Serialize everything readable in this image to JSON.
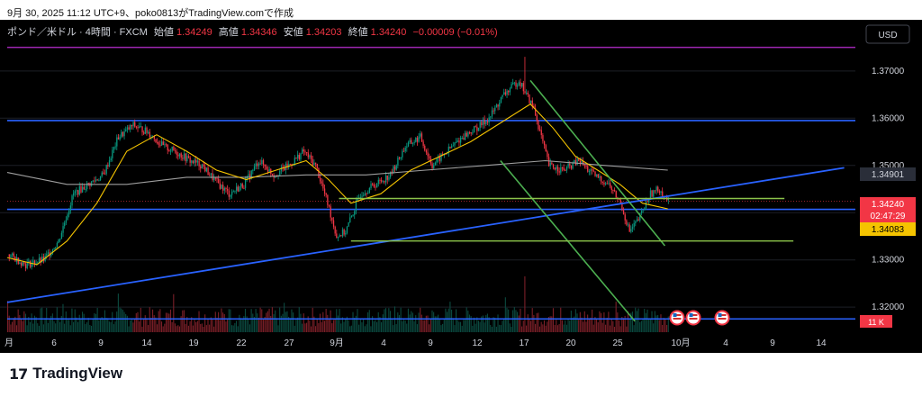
{
  "caption": "9月 30, 2025 11:12 UTC+9、poko0813がTradingView.comで作成",
  "header": {
    "symbol": "ポンド／米ドル · 4時間 · FXCM",
    "open_label": "始値",
    "open": "1.34249",
    "high_label": "高値",
    "high": "1.34346",
    "low_label": "安値",
    "low": "1.34203",
    "close_label": "終値",
    "close": "1.34240",
    "change": "−0.00009 (−0.01%)"
  },
  "currency_button": "USD",
  "price_badges": {
    "ma": "1.34901",
    "last": "1.34240",
    "countdown": "02:47:29",
    "ma_fast": "1.34083",
    "volume": "11 K"
  },
  "logo": {
    "mark": "17",
    "text": "TradingView"
  },
  "colors": {
    "background": "#000000",
    "bull": "#089981",
    "bear": "#f23645",
    "fast_ma": "#f5c400",
    "slow_ma": "#9e9e9e",
    "horizontal_lines": "#2962ff",
    "trendline": "#2962ff",
    "channel": "#4caf50",
    "green_levels": "#8bc34a",
    "top_line": "#9c27b0"
  },
  "icons": [
    "us-flag-event-icon",
    "us-flag-event-icon",
    "us-flag-event-icon"
  ],
  "chart_data": {
    "type": "candlestick",
    "y_axis": {
      "range": [
        1.3145,
        1.3755
      ],
      "ticks": [
        "1.37000",
        "1.36000",
        "1.35000",
        "1.34000",
        "1.33000",
        "1.32000"
      ]
    },
    "x_axis": {
      "ticks": [
        "月",
        "6",
        "9",
        "14",
        "19",
        "22",
        "27",
        "9月",
        "4",
        "9",
        "12",
        "17",
        "20",
        "25",
        "10月",
        "4",
        "9",
        "14"
      ]
    },
    "series": [
      {
        "name": "",
        "type": "candles",
        "close_path": [
          [
            0,
            1.3312
          ],
          [
            12,
            1.329
          ],
          [
            24,
            1.33
          ],
          [
            34,
            1.334
          ],
          [
            44,
            1.344
          ],
          [
            54,
            1.346
          ],
          [
            64,
            1.348
          ],
          [
            74,
            1.356
          ],
          [
            84,
            1.3585
          ],
          [
            94,
            1.357
          ],
          [
            104,
            1.354
          ],
          [
            112,
            1.353
          ],
          [
            122,
            1.351
          ],
          [
            130,
            1.35
          ],
          [
            138,
            1.347
          ],
          [
            148,
            1.344
          ],
          [
            158,
            1.346
          ],
          [
            168,
            1.351
          ],
          [
            178,
            1.348
          ],
          [
            188,
            1.35
          ],
          [
            198,
            1.353
          ],
          [
            206,
            1.35
          ],
          [
            214,
            1.342
          ],
          [
            220,
            1.335
          ],
          [
            226,
            1.336
          ],
          [
            236,
            1.344
          ],
          [
            246,
            1.346
          ],
          [
            256,
            1.348
          ],
          [
            266,
            1.354
          ],
          [
            276,
            1.356
          ],
          [
            284,
            1.35
          ],
          [
            294,
            1.353
          ],
          [
            304,
            1.356
          ],
          [
            314,
            1.358
          ],
          [
            322,
            1.36
          ],
          [
            332,
            1.365
          ],
          [
            342,
            1.368
          ],
          [
            352,
            1.362
          ],
          [
            362,
            1.35
          ],
          [
            372,
            1.349
          ],
          [
            382,
            1.351
          ],
          [
            392,
            1.348
          ],
          [
            402,
            1.346
          ],
          [
            410,
            1.342
          ],
          [
            416,
            1.336
          ],
          [
            422,
            1.3385
          ],
          [
            430,
            1.344
          ],
          [
            436,
            1.345
          ],
          [
            442,
            1.3424
          ]
        ]
      },
      {
        "name": "",
        "type": "line",
        "points": [
          [
            0,
            1.3305
          ],
          [
            20,
            1.329
          ],
          [
            40,
            1.334
          ],
          [
            60,
            1.342
          ],
          [
            80,
            1.353
          ],
          [
            100,
            1.3565
          ],
          [
            120,
            1.353
          ],
          [
            140,
            1.349
          ],
          [
            160,
            1.347
          ],
          [
            180,
            1.349
          ],
          [
            200,
            1.351
          ],
          [
            215,
            1.347
          ],
          [
            230,
            1.342
          ],
          [
            250,
            1.344
          ],
          [
            270,
            1.349
          ],
          [
            290,
            1.352
          ],
          [
            310,
            1.355
          ],
          [
            330,
            1.359
          ],
          [
            350,
            1.363
          ],
          [
            365,
            1.358
          ],
          [
            380,
            1.352
          ],
          [
            395,
            1.349
          ],
          [
            410,
            1.346
          ],
          [
            425,
            1.342
          ],
          [
            442,
            1.3408
          ]
        ]
      },
      {
        "name": "",
        "type": "line",
        "points": [
          [
            0,
            1.3485
          ],
          [
            40,
            1.346
          ],
          [
            80,
            1.346
          ],
          [
            120,
            1.3475
          ],
          [
            160,
            1.3475
          ],
          [
            200,
            1.348
          ],
          [
            240,
            1.348
          ],
          [
            280,
            1.349
          ],
          [
            320,
            1.35
          ],
          [
            360,
            1.351
          ],
          [
            400,
            1.35
          ],
          [
            442,
            1.349
          ]
        ]
      }
    ],
    "annotations": {
      "horizontal_lines": [
        1.375,
        1.3595,
        1.3407,
        1.3175
      ],
      "trendline": [
        [
          0,
          1.321
        ],
        [
          560,
          1.3495
        ]
      ],
      "channel_upper": [
        [
          350,
          1.368
        ],
        [
          440,
          1.333
        ]
      ],
      "channel_lower": [
        [
          330,
          1.351
        ],
        [
          420,
          1.317
        ]
      ],
      "green_levels": [
        {
          "y": 1.343,
          "x_from": 222,
          "x_to": 520
        },
        {
          "y": 1.334,
          "x_from": 230,
          "x_to": 526
        }
      ]
    }
  }
}
